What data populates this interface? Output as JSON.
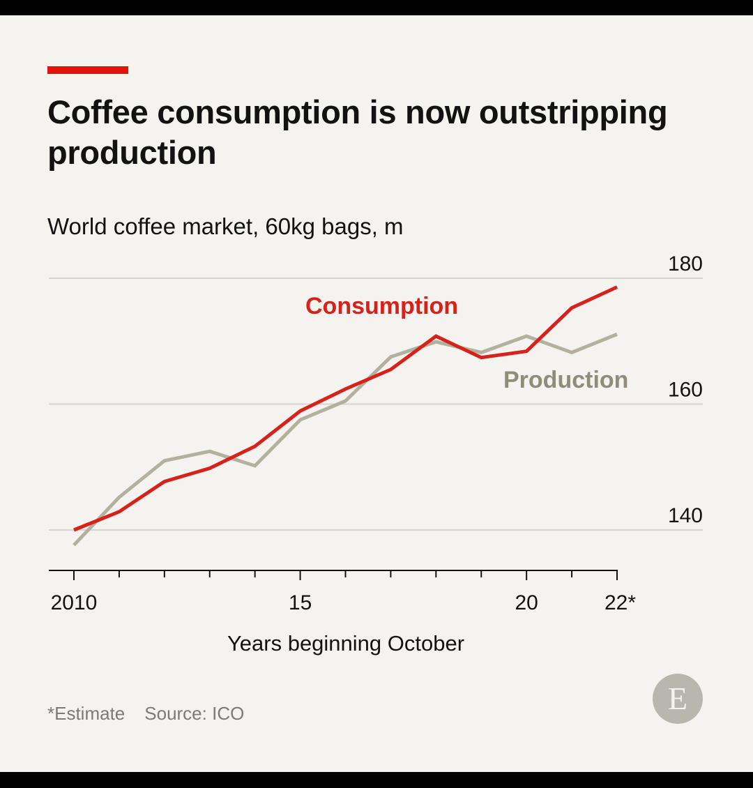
{
  "header": {
    "title": "Coffee consumption is now outstripping production",
    "subtitle": "World coffee market, 60kg bags, m"
  },
  "footer": {
    "note": "*Estimate",
    "source": "Source: ICO",
    "logo_letter": "E"
  },
  "colors": {
    "accent": "#e3120b",
    "consumption": "#d7221c",
    "production": "#b3b09f",
    "grid": "#d6d4cd"
  },
  "chart_data": {
    "type": "line",
    "title": "Coffee consumption is now outstripping production",
    "subtitle": "World coffee market, 60kg bags, m",
    "xlabel": "Years beginning October",
    "ylabel": "",
    "x": [
      2010,
      2011,
      2012,
      2013,
      2014,
      2015,
      2016,
      2017,
      2018,
      2019,
      2020,
      2021,
      2022
    ],
    "x_tick_values": [
      2010,
      2015,
      2020,
      2022
    ],
    "x_tick_labels": [
      "2010",
      "15",
      "20",
      "22*"
    ],
    "y_ticks": [
      140,
      160,
      180
    ],
    "ylim": [
      134,
      180
    ],
    "xlim": [
      2009.5,
      2022
    ],
    "grid": true,
    "series": [
      {
        "name": "Consumption",
        "color": "#d7221c",
        "values": [
          140.0,
          142.9,
          147.7,
          149.8,
          153.3,
          158.9,
          162.4,
          165.5,
          170.8,
          167.4,
          168.4,
          175.3,
          178.6
        ]
      },
      {
        "name": "Production",
        "color": "#b3b09f",
        "values": [
          137.6,
          145.2,
          151.0,
          152.5,
          150.2,
          157.5,
          160.5,
          167.5,
          169.9,
          168.2,
          170.8,
          168.2,
          171.1
        ]
      }
    ]
  }
}
